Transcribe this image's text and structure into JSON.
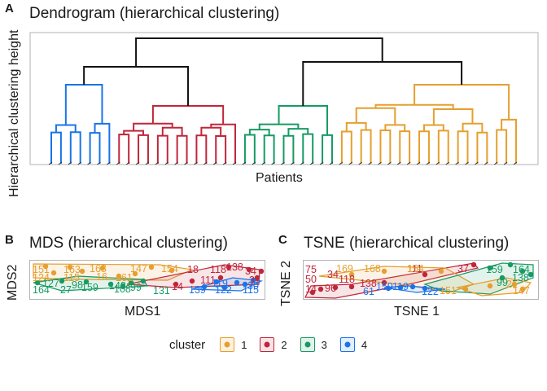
{
  "chart_data": [
    {
      "panel": "A",
      "type": "dendrogram",
      "title": "Dendrogram (hierarchical clustering)",
      "xlabel": "Patients",
      "ylabel": "Hierarchical clustering height",
      "clusters": [
        {
          "id": "4",
          "color": "#1a73e8",
          "leaves": 7
        },
        {
          "id": "2",
          "color": "#c0263a",
          "leaves": 13
        },
        {
          "id": "3",
          "color": "#179a63",
          "leaves": 10
        },
        {
          "id": "1",
          "color": "#e69f2e",
          "leaves": 19
        }
      ]
    },
    {
      "panel": "B",
      "type": "scatter",
      "title": "MDS (hierarchical clustering)",
      "xlabel": "MDS1",
      "ylabel": "MDS2",
      "labels": [
        {
          "t": "151",
          "c": "1"
        },
        {
          "t": "163",
          "c": "1"
        },
        {
          "t": "168",
          "c": "1"
        },
        {
          "t": "147",
          "c": "1"
        },
        {
          "t": "154",
          "c": "1"
        },
        {
          "t": "124",
          "c": "1"
        },
        {
          "t": "115",
          "c": "1"
        },
        {
          "t": "16",
          "c": "1"
        },
        {
          "t": "161",
          "c": "1"
        },
        {
          "t": "18",
          "c": "2"
        },
        {
          "t": "118",
          "c": "2"
        },
        {
          "t": "138",
          "c": "2"
        },
        {
          "t": "34",
          "c": "2"
        },
        {
          "t": "111",
          "c": "2"
        },
        {
          "t": "14",
          "c": "2"
        },
        {
          "t": "37",
          "c": "2"
        },
        {
          "t": "164",
          "c": "3"
        },
        {
          "t": "27",
          "c": "3"
        },
        {
          "t": "98",
          "c": "3"
        },
        {
          "t": "159",
          "c": "3"
        },
        {
          "t": "148",
          "c": "3"
        },
        {
          "t": "108",
          "c": "3"
        },
        {
          "t": "99",
          "c": "3"
        },
        {
          "t": "131",
          "c": "3"
        },
        {
          "t": "127",
          "c": "3"
        },
        {
          "t": "139",
          "c": "4"
        },
        {
          "t": "122",
          "c": "4"
        },
        {
          "t": "115",
          "c": "4"
        },
        {
          "t": "119",
          "c": "4"
        },
        {
          "t": "30",
          "c": "4"
        }
      ]
    },
    {
      "panel": "C",
      "type": "scatter",
      "title": "TSNE (hierarchical clustering)",
      "xlabel": "TSNE 1",
      "ylabel": "TSNE 2",
      "labels": [
        {
          "t": "75",
          "c": "2"
        },
        {
          "t": "50",
          "c": "2"
        },
        {
          "t": "34",
          "c": "2"
        },
        {
          "t": "118",
          "c": "2"
        },
        {
          "t": "14",
          "c": "2"
        },
        {
          "t": "96",
          "c": "2"
        },
        {
          "t": "138",
          "c": "2"
        },
        {
          "t": "111",
          "c": "2"
        },
        {
          "t": "37",
          "c": "2"
        },
        {
          "t": "169",
          "c": "1"
        },
        {
          "t": "168",
          "c": "1"
        },
        {
          "t": "154",
          "c": "1"
        },
        {
          "t": "151",
          "c": "1"
        },
        {
          "t": "147",
          "c": "1"
        },
        {
          "t": "21",
          "c": "1"
        },
        {
          "t": "61",
          "c": "4"
        },
        {
          "t": "159",
          "c": "4"
        },
        {
          "t": "119",
          "c": "4"
        },
        {
          "t": "122",
          "c": "4"
        },
        {
          "t": "159",
          "c": "3"
        },
        {
          "t": "164",
          "c": "3"
        },
        {
          "t": "138",
          "c": "3"
        },
        {
          "t": "99",
          "c": "3"
        }
      ]
    }
  ],
  "panel_letters": {
    "a": "A",
    "b": "B",
    "c": "C"
  },
  "legend": {
    "title": "cluster",
    "items": [
      {
        "label": "1",
        "color": "#e69f2e"
      },
      {
        "label": "2",
        "color": "#c0263a"
      },
      {
        "label": "3",
        "color": "#179a63"
      },
      {
        "label": "4",
        "color": "#1a73e8"
      }
    ]
  }
}
